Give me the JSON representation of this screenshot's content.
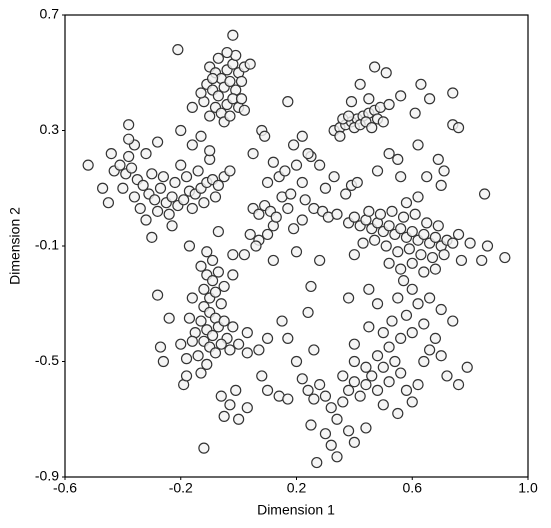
{
  "chart_data": {
    "type": "scatter",
    "xlabel": "Dimension 1",
    "ylabel": "Dimension 2",
    "xlim": [
      -0.6,
      1.0
    ],
    "ylim": [
      -0.9,
      0.7
    ],
    "xticks": [
      -0.6,
      -0.2,
      0.2,
      0.6,
      {
        "value": 1.0,
        "label": "1.0"
      }
    ],
    "yticks": [
      0.7,
      0.3,
      -0.1,
      -0.5,
      -0.9
    ],
    "color": "#f2f2f2",
    "edgecolor": "#333333",
    "grid": false,
    "x": [
      -0.1,
      -0.08,
      -0.06,
      -0.04,
      -0.02,
      0.0,
      -0.11,
      -0.09,
      -0.07,
      -0.05,
      -0.03,
      -0.01,
      0.01,
      -0.12,
      -0.08,
      -0.06,
      -0.04,
      -0.02,
      0.0,
      -0.1,
      -0.05,
      -0.03,
      0.01,
      0.02,
      -0.01,
      -0.07,
      0.02,
      -0.09,
      -0.13,
      -0.04,
      -0.21,
      -0.02,
      0.04,
      -0.16,
      0.08,
      -0.13,
      -0.2,
      -0.43,
      -0.41,
      -0.39,
      -0.37,
      -0.35,
      -0.33,
      -0.31,
      -0.29,
      -0.27,
      -0.25,
      -0.23,
      -0.21,
      -0.19,
      -0.17,
      -0.15,
      -0.13,
      -0.11,
      -0.09,
      -0.07,
      -0.05,
      -0.03,
      -0.3,
      -0.26,
      -0.22,
      -0.18,
      -0.14,
      -0.36,
      -0.4,
      -0.34,
      -0.28,
      -0.24,
      -0.16,
      -0.12,
      -0.08,
      -0.2,
      -0.1,
      -0.45,
      -0.38,
      -0.32,
      -0.52,
      -0.44,
      -0.47,
      -0.36,
      -0.3,
      -0.32,
      -0.23,
      -0.38,
      -0.38,
      -0.28,
      -0.16,
      -0.1,
      -0.13,
      -0.11,
      -0.09,
      -0.12,
      -0.1,
      -0.08,
      -0.12,
      -0.1,
      -0.08,
      -0.06,
      -0.13,
      -0.11,
      -0.09,
      -0.07,
      -0.05,
      -0.12,
      -0.1,
      -0.08,
      -0.14,
      -0.11,
      -0.13,
      -0.04,
      -0.02,
      -0.03,
      0.0,
      -0.06,
      -0.15,
      -0.17,
      -0.16,
      -0.18,
      -0.09,
      -0.07,
      -0.11,
      -0.05,
      -0.16,
      -0.28,
      -0.24,
      -0.27,
      -0.26,
      -0.2,
      -0.02,
      0.03,
      0.07,
      -0.19,
      -0.18,
      -0.06,
      -0.03,
      -0.01,
      -0.05,
      -0.12,
      0.0,
      0.03,
      -0.17,
      -0.07,
      -0.02,
      0.05,
      0.07,
      0.09,
      0.11,
      0.04,
      0.07,
      0.1,
      0.12,
      0.06,
      0.13,
      0.17,
      0.19,
      0.22,
      0.15,
      0.1,
      0.14,
      0.16,
      0.2,
      0.22,
      0.18,
      0.12,
      0.05,
      0.25,
      0.28,
      0.23,
      0.26,
      0.29,
      0.31,
      0.34,
      0.3,
      0.33,
      0.37,
      0.39,
      0.41,
      0.12,
      0.2,
      0.28,
      0.09,
      0.19,
      0.24,
      0.17,
      0.22,
      0.38,
      0.4,
      0.42,
      0.44,
      0.46,
      0.48,
      0.5,
      0.52,
      0.54,
      0.56,
      0.58,
      0.6,
      0.62,
      0.64,
      0.66,
      0.68,
      0.7,
      0.72,
      0.45,
      0.49,
      0.53,
      0.57,
      0.61,
      0.65,
      0.69,
      0.47,
      0.51,
      0.55,
      0.59,
      0.63,
      0.67,
      0.71,
      0.52,
      0.56,
      0.6,
      0.64,
      0.68,
      0.74,
      0.76,
      0.8,
      0.86,
      0.84,
      0.92,
      0.77,
      0.43,
      0.4,
      0.58,
      0.62,
      0.7,
      0.56,
      0.48,
      0.85,
      0.33,
      0.35,
      0.37,
      0.39,
      0.41,
      0.43,
      0.45,
      0.47,
      0.49,
      0.36,
      0.38,
      0.4,
      0.42,
      0.44,
      0.46,
      0.48,
      0.5,
      0.35,
      0.39,
      0.45,
      0.52,
      0.56,
      0.42,
      0.47,
      0.51,
      0.63,
      0.66,
      0.74,
      0.74,
      0.76,
      0.61,
      0.62,
      0.55,
      0.69,
      0.71,
      0.65,
      0.52,
      0.2,
      0.22,
      0.24,
      0.26,
      0.28,
      0.3,
      0.32,
      0.34,
      0.36,
      0.38,
      0.4,
      0.42,
      0.44,
      0.46,
      0.48,
      0.5,
      0.52,
      0.54,
      0.56,
      0.58,
      0.6,
      0.62,
      0.64,
      0.66,
      0.68,
      0.7,
      0.36,
      0.4,
      0.44,
      0.48,
      0.52,
      0.56,
      0.6,
      0.64,
      0.58,
      0.62,
      0.55,
      0.53,
      0.5,
      0.57,
      0.6,
      0.66,
      0.7,
      0.74,
      0.72,
      0.76,
      0.79,
      0.3,
      0.32,
      0.34,
      0.27,
      0.38,
      0.44,
      0.4,
      0.5,
      0.55,
      0.25,
      0.17,
      0.26,
      0.14,
      0.1,
      0.08,
      0.17,
      0.03,
      0.1,
      0.15,
      0.4,
      0.45,
      0.48,
      0.45,
      0.38,
      0.25,
      0.02,
      0.24
    ],
    "values": [
      0.52,
      0.5,
      0.48,
      0.51,
      0.53,
      0.5,
      0.46,
      0.44,
      0.42,
      0.45,
      0.47,
      0.44,
      0.47,
      0.4,
      0.38,
      0.36,
      0.39,
      0.41,
      0.38,
      0.35,
      0.33,
      0.35,
      0.41,
      0.52,
      0.56,
      0.55,
      0.37,
      0.48,
      0.43,
      0.57,
      0.58,
      0.63,
      0.53,
      0.38,
      0.3,
      0.28,
      0.3,
      0.16,
      0.18,
      0.15,
      0.17,
      0.13,
      0.11,
      0.08,
      0.06,
      0.1,
      0.05,
      0.07,
      0.04,
      0.06,
      0.09,
      0.08,
      0.1,
      0.12,
      0.13,
      0.11,
      0.14,
      0.16,
      0.15,
      0.14,
      0.12,
      0.14,
      0.16,
      0.07,
      0.1,
      0.03,
      0.02,
      0.01,
      0.03,
      0.05,
      0.07,
      0.18,
      0.2,
      0.05,
      0.21,
      0.22,
      0.18,
      0.22,
      0.1,
      0.25,
      -0.07,
      -0.01,
      -0.03,
      0.27,
      0.32,
      0.26,
      0.25,
      0.23,
      -0.17,
      -0.2,
      -0.22,
      -0.25,
      -0.28,
      -0.26,
      -0.31,
      -0.33,
      -0.35,
      -0.3,
      -0.36,
      -0.39,
      -0.41,
      -0.38,
      -0.36,
      -0.43,
      -0.45,
      -0.47,
      -0.48,
      -0.51,
      -0.54,
      -0.42,
      -0.38,
      -0.46,
      -0.44,
      -0.44,
      -0.4,
      -0.35,
      -0.43,
      -0.49,
      -0.15,
      -0.19,
      -0.12,
      -0.24,
      -0.28,
      -0.27,
      -0.35,
      -0.45,
      -0.5,
      -0.44,
      -0.2,
      -0.47,
      -0.46,
      -0.58,
      -0.55,
      -0.62,
      -0.65,
      -0.6,
      -0.69,
      -0.8,
      -0.7,
      -0.66,
      -0.1,
      -0.05,
      -0.13,
      0.03,
      0.01,
      0.04,
      0.02,
      -0.06,
      -0.08,
      -0.06,
      -0.03,
      -0.1,
      0.0,
      0.03,
      -0.04,
      -0.01,
      0.07,
      0.12,
      0.14,
      0.16,
      0.18,
      0.12,
      0.08,
      0.19,
      0.22,
      0.21,
      0.18,
      0.06,
      0.03,
      0.02,
      0.0,
      0.01,
      0.1,
      0.14,
      0.08,
      0.11,
      0.12,
      -0.15,
      -0.12,
      -0.15,
      0.28,
      0.25,
      0.22,
      0.4,
      0.28,
      -0.02,
      0.0,
      -0.03,
      -0.01,
      -0.04,
      -0.02,
      -0.05,
      -0.03,
      -0.06,
      -0.04,
      -0.07,
      -0.05,
      -0.08,
      -0.06,
      -0.09,
      -0.07,
      -0.1,
      -0.08,
      0.02,
      0.01,
      0.02,
      0.0,
      0.01,
      -0.02,
      -0.03,
      -0.08,
      -0.1,
      -0.12,
      -0.11,
      -0.13,
      -0.14,
      -0.13,
      -0.16,
      -0.18,
      -0.16,
      -0.19,
      -0.18,
      -0.09,
      -0.06,
      -0.09,
      -0.1,
      -0.15,
      -0.14,
      -0.15,
      -0.09,
      -0.13,
      0.05,
      0.07,
      0.11,
      0.14,
      0.16,
      0.08,
      0.3,
      0.31,
      0.32,
      0.33,
      0.34,
      0.35,
      0.36,
      0.37,
      0.38,
      0.34,
      0.35,
      0.31,
      0.32,
      0.33,
      0.31,
      0.34,
      0.33,
      0.28,
      0.4,
      0.41,
      0.39,
      0.42,
      0.46,
      0.52,
      0.5,
      0.46,
      0.41,
      0.43,
      0.32,
      0.31,
      0.36,
      0.25,
      0.2,
      0.2,
      0.16,
      0.14,
      0.22,
      -0.5,
      -0.56,
      -0.6,
      -0.63,
      -0.58,
      -0.62,
      -0.66,
      -0.7,
      -0.64,
      -0.6,
      -0.57,
      -0.62,
      -0.58,
      -0.55,
      -0.6,
      -0.52,
      -0.57,
      -0.5,
      -0.54,
      -0.6,
      -0.64,
      -0.58,
      -0.5,
      -0.46,
      -0.42,
      -0.48,
      -0.55,
      -0.5,
      -0.52,
      -0.48,
      -0.45,
      -0.42,
      -0.4,
      -0.37,
      -0.34,
      -0.3,
      -0.28,
      -0.36,
      -0.4,
      -0.22,
      -0.25,
      -0.28,
      -0.32,
      -0.36,
      -0.55,
      -0.58,
      -0.52,
      -0.75,
      -0.79,
      -0.83,
      -0.85,
      -0.74,
      -0.73,
      -0.78,
      -0.65,
      -0.68,
      -0.72,
      -0.42,
      -0.46,
      -0.62,
      -0.6,
      -0.55,
      -0.63,
      -0.4,
      -0.42,
      -0.36,
      -0.44,
      -0.38,
      -0.3,
      -0.25,
      -0.28,
      -0.24,
      -0.13,
      -0.33
    ]
  }
}
